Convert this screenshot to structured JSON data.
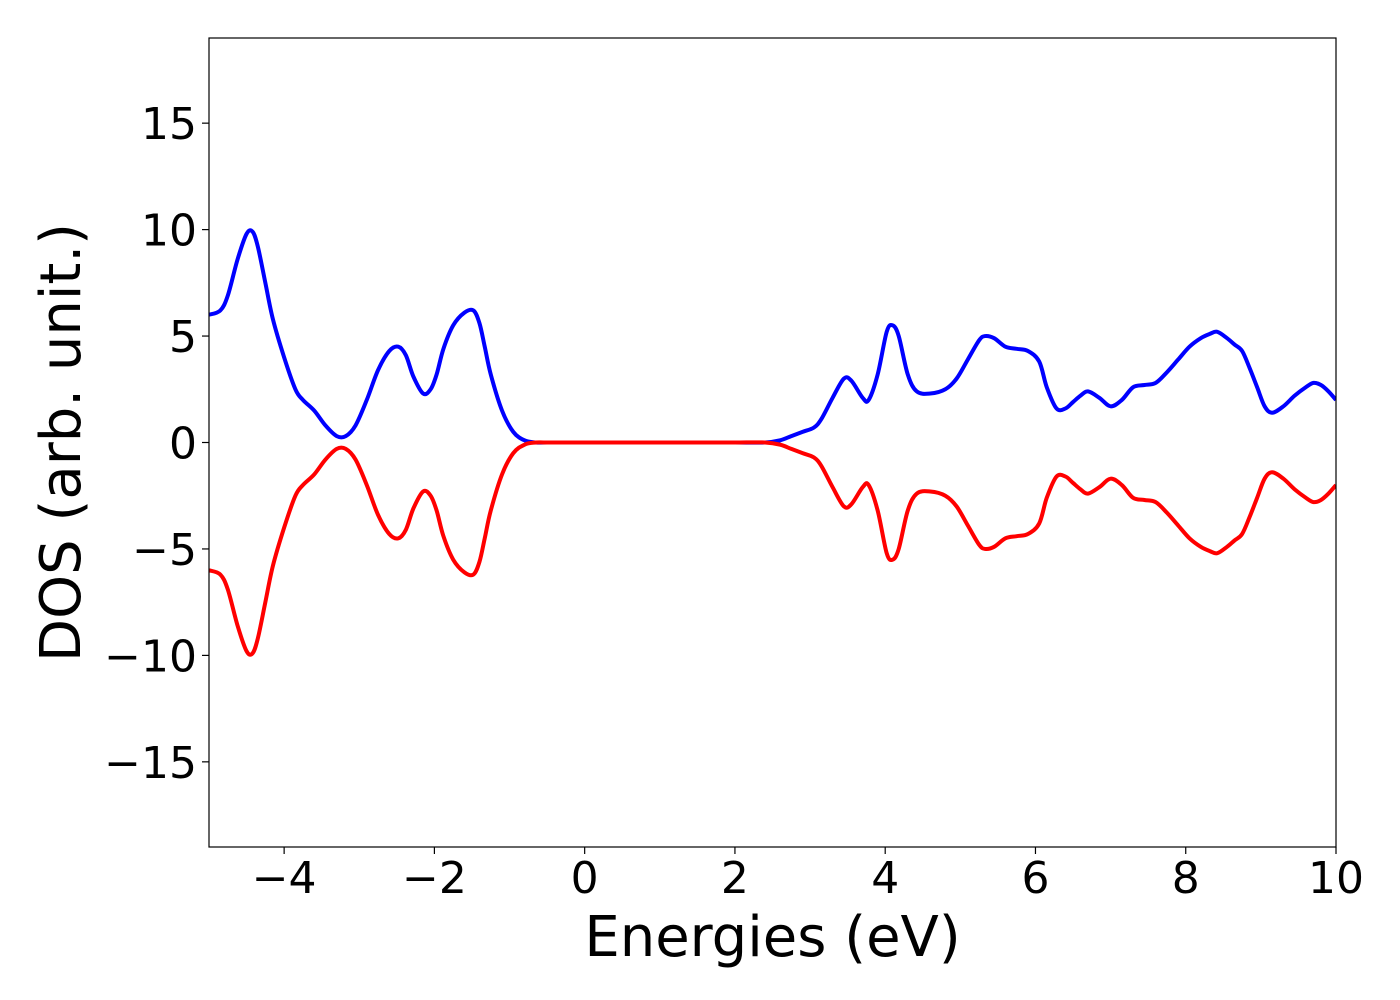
{
  "chart_data": {
    "type": "line",
    "xlabel": "Energies (eV)",
    "ylabel": "DOS (arb. unit.)",
    "xlim": [
      -5,
      10
    ],
    "ylim": [
      -19,
      19
    ],
    "xticks": [
      -4,
      -2,
      0,
      2,
      4,
      6,
      8,
      10
    ],
    "yticks": [
      -15,
      -10,
      -5,
      0,
      5,
      10,
      15
    ],
    "xtick_labels": [
      "−4",
      "−2",
      "0",
      "2",
      "4",
      "6",
      "8",
      "10"
    ],
    "ytick_labels": [
      "−15",
      "−10",
      "−5",
      "0",
      "5",
      "10",
      "15"
    ],
    "grid": false,
    "series": [
      {
        "color": "#0000ff",
        "x": [
          -5.0,
          -4.85,
          -4.75,
          -4.62,
          -4.5,
          -4.42,
          -4.35,
          -4.25,
          -4.15,
          -4.0,
          -3.85,
          -3.75,
          -3.6,
          -3.45,
          -3.3,
          -3.18,
          -3.05,
          -2.9,
          -2.75,
          -2.6,
          -2.48,
          -2.38,
          -2.28,
          -2.15,
          -2.05,
          -1.97,
          -1.88,
          -1.75,
          -1.6,
          -1.48,
          -1.4,
          -1.33,
          -1.25,
          -1.1,
          -0.95,
          -0.8,
          -0.65,
          -0.5,
          0.0,
          0.5,
          1.0,
          1.5,
          2.0,
          2.4,
          2.6,
          2.75,
          2.9,
          3.05,
          3.15,
          3.3,
          3.45,
          3.55,
          3.7,
          3.78,
          3.9,
          4.02,
          4.1,
          4.18,
          4.3,
          4.42,
          4.6,
          4.8,
          4.95,
          5.1,
          5.25,
          5.33,
          5.45,
          5.6,
          5.75,
          5.9,
          6.05,
          6.15,
          6.28,
          6.4,
          6.5,
          6.6,
          6.7,
          6.85,
          7.0,
          7.15,
          7.3,
          7.45,
          7.6,
          7.75,
          7.9,
          8.05,
          8.2,
          8.32,
          8.42,
          8.55,
          8.65,
          8.75,
          8.85,
          8.95,
          9.05,
          9.15,
          9.3,
          9.45,
          9.6,
          9.7,
          9.8,
          9.9,
          10.0
        ],
        "y": [
          6.0,
          6.2,
          6.9,
          8.6,
          9.8,
          9.9,
          9.2,
          7.5,
          5.8,
          4.0,
          2.5,
          2.0,
          1.5,
          0.8,
          0.3,
          0.3,
          0.8,
          2.0,
          3.4,
          4.3,
          4.5,
          4.1,
          3.1,
          2.3,
          2.5,
          3.2,
          4.4,
          5.5,
          6.1,
          6.2,
          5.6,
          4.5,
          3.2,
          1.5,
          0.5,
          0.1,
          0.0,
          0.0,
          0.0,
          0.0,
          0.0,
          0.0,
          0.0,
          0.0,
          0.1,
          0.3,
          0.5,
          0.7,
          1.1,
          2.1,
          3.0,
          2.9,
          2.1,
          2.0,
          3.2,
          5.2,
          5.5,
          5.0,
          3.2,
          2.4,
          2.3,
          2.5,
          3.0,
          3.9,
          4.8,
          5.0,
          4.9,
          4.5,
          4.4,
          4.3,
          3.8,
          2.6,
          1.6,
          1.6,
          1.9,
          2.2,
          2.4,
          2.1,
          1.7,
          2.0,
          2.6,
          2.7,
          2.8,
          3.3,
          3.9,
          4.5,
          4.9,
          5.1,
          5.2,
          4.9,
          4.6,
          4.3,
          3.5,
          2.6,
          1.7,
          1.4,
          1.7,
          2.2,
          2.6,
          2.8,
          2.7,
          2.4,
          2.0
        ]
      },
      {
        "color": "#ff0000",
        "x": [
          -5.0,
          -4.85,
          -4.75,
          -4.62,
          -4.5,
          -4.42,
          -4.35,
          -4.25,
          -4.15,
          -4.0,
          -3.85,
          -3.75,
          -3.6,
          -3.45,
          -3.3,
          -3.18,
          -3.05,
          -2.9,
          -2.75,
          -2.6,
          -2.48,
          -2.38,
          -2.28,
          -2.15,
          -2.05,
          -1.97,
          -1.88,
          -1.75,
          -1.6,
          -1.48,
          -1.4,
          -1.33,
          -1.25,
          -1.1,
          -0.95,
          -0.8,
          -0.65,
          -0.5,
          0.0,
          0.5,
          1.0,
          1.5,
          2.0,
          2.4,
          2.6,
          2.75,
          2.9,
          3.05,
          3.15,
          3.3,
          3.45,
          3.55,
          3.7,
          3.78,
          3.9,
          4.02,
          4.1,
          4.18,
          4.3,
          4.42,
          4.6,
          4.8,
          4.95,
          5.1,
          5.25,
          5.33,
          5.45,
          5.6,
          5.75,
          5.9,
          6.05,
          6.15,
          6.28,
          6.4,
          6.5,
          6.6,
          6.7,
          6.85,
          7.0,
          7.15,
          7.3,
          7.45,
          7.6,
          7.75,
          7.9,
          8.05,
          8.2,
          8.32,
          8.42,
          8.55,
          8.65,
          8.75,
          8.85,
          8.95,
          9.05,
          9.15,
          9.3,
          9.45,
          9.6,
          9.7,
          9.8,
          9.9,
          10.0
        ],
        "y": [
          -6.0,
          -6.2,
          -6.9,
          -8.6,
          -9.8,
          -9.9,
          -9.2,
          -7.5,
          -5.8,
          -4.0,
          -2.5,
          -2.0,
          -1.5,
          -0.8,
          -0.3,
          -0.3,
          -0.8,
          -2.0,
          -3.4,
          -4.3,
          -4.5,
          -4.1,
          -3.1,
          -2.3,
          -2.5,
          -3.2,
          -4.4,
          -5.5,
          -6.1,
          -6.2,
          -5.6,
          -4.5,
          -3.2,
          -1.5,
          -0.5,
          -0.1,
          0.0,
          0.0,
          0.0,
          0.0,
          0.0,
          0.0,
          0.0,
          0.0,
          -0.1,
          -0.3,
          -0.5,
          -0.7,
          -1.1,
          -2.1,
          -3.0,
          -2.9,
          -2.1,
          -2.0,
          -3.2,
          -5.2,
          -5.5,
          -5.0,
          -3.2,
          -2.4,
          -2.3,
          -2.5,
          -3.0,
          -3.9,
          -4.8,
          -5.0,
          -4.9,
          -4.5,
          -4.4,
          -4.3,
          -3.8,
          -2.6,
          -1.6,
          -1.6,
          -1.9,
          -2.2,
          -2.4,
          -2.1,
          -1.7,
          -2.0,
          -2.6,
          -2.7,
          -2.8,
          -3.3,
          -3.9,
          -4.5,
          -4.9,
          -5.1,
          -5.2,
          -4.9,
          -4.6,
          -4.3,
          -3.5,
          -2.6,
          -1.7,
          -1.4,
          -1.7,
          -2.2,
          -2.6,
          -2.8,
          -2.7,
          -2.4,
          -2.0
        ]
      }
    ]
  }
}
